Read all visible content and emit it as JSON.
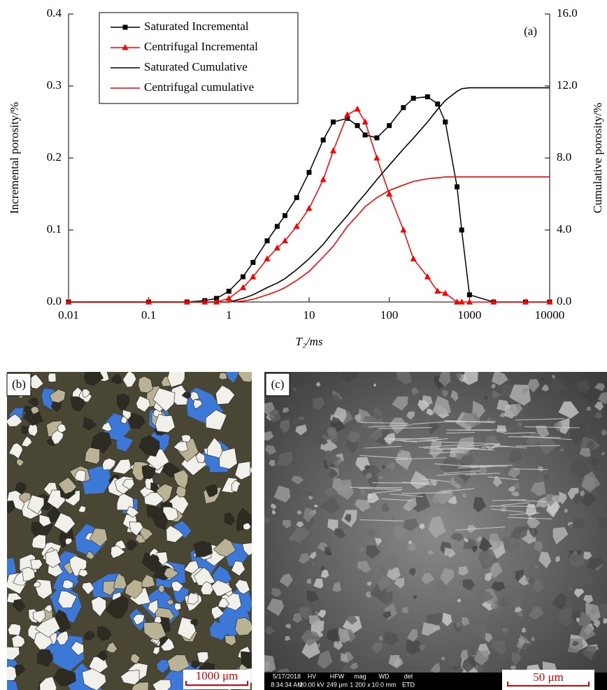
{
  "chart_data": {
    "type": "line",
    "annotation": "(a)",
    "x_label": "T₂/ms",
    "y_label": "Incremental porosity/%",
    "y2_label": "Cumulative porosity/%",
    "xscale": "log",
    "xlim": [
      0.01,
      10000
    ],
    "xticks": [
      0.01,
      0.1,
      1,
      10,
      100,
      1000,
      10000
    ],
    "ylim": [
      0,
      0.4
    ],
    "yticks": [
      {
        "value": 0,
        "label": "0.0"
      },
      {
        "value": 0.1,
        "label": "0.1"
      },
      {
        "value": 0.2,
        "label": "0.2"
      },
      {
        "value": 0.3,
        "label": "0.3"
      },
      {
        "value": 0.4,
        "label": "0.4"
      }
    ],
    "y2lim": [
      0,
      16
    ],
    "y2ticks": [
      {
        "value": 0,
        "label": "0.0"
      },
      {
        "value": 4,
        "label": "4.0"
      },
      {
        "value": 8,
        "label": "8.0"
      },
      {
        "value": 12,
        "label": "12.0"
      },
      {
        "value": 16,
        "label": "16.0"
      }
    ],
    "legend": "upper left",
    "x": [
      0.01,
      0.1,
      0.3,
      0.5,
      0.7,
      1,
      1.5,
      2,
      3,
      4,
      5,
      7,
      10,
      15,
      20,
      30,
      40,
      50,
      70,
      100,
      150,
      200,
      300,
      400,
      500,
      700,
      800,
      1000,
      2000,
      5000,
      10000
    ],
    "series": [
      {
        "name": "Saturated Incremental",
        "color": "#000000",
        "marker": "square",
        "values": [
          0,
          0,
          0,
          0.002,
          0.005,
          0.015,
          0.035,
          0.055,
          0.085,
          0.105,
          0.12,
          0.145,
          0.18,
          0.225,
          0.25,
          0.255,
          0.245,
          0.232,
          0.228,
          0.245,
          0.27,
          0.283,
          0.285,
          0.275,
          0.25,
          0.16,
          0.1,
          0.01,
          0,
          0,
          0
        ]
      },
      {
        "name": "Centrifugal Incremental",
        "color": "#ff0000",
        "marker": "triangle",
        "values": [
          0,
          0,
          0,
          0,
          0,
          0.005,
          0.02,
          0.035,
          0.06,
          0.075,
          0.085,
          0.105,
          0.13,
          0.17,
          0.21,
          0.26,
          0.268,
          0.25,
          0.2,
          0.15,
          0.1,
          0.06,
          0.035,
          0.015,
          0.012,
          0,
          0,
          0,
          0,
          0,
          0
        ]
      },
      {
        "name": "Saturated Cumulative",
        "color": "#000000",
        "axis": "y2",
        "values": [
          0,
          0,
          0,
          0,
          0,
          0,
          0.2,
          0.4,
          0.8,
          1.05,
          1.3,
          1.8,
          2.4,
          3.2,
          3.9,
          4.8,
          5.5,
          6.0,
          6.8,
          7.6,
          8.5,
          9.1,
          10.0,
          10.7,
          11.2,
          11.7,
          11.85,
          11.9,
          11.9,
          11.9,
          11.9
        ]
      },
      {
        "name": "Centrifugal cumulative",
        "color": "#ff0000",
        "axis": "y2",
        "values": [
          0,
          0,
          0,
          0,
          0,
          0,
          0.05,
          0.15,
          0.4,
          0.6,
          0.8,
          1.2,
          1.7,
          2.5,
          3.1,
          4.2,
          4.8,
          5.3,
          5.8,
          6.2,
          6.5,
          6.7,
          6.85,
          6.9,
          6.95,
          6.95,
          6.95,
          6.95,
          6.95,
          6.95,
          6.95
        ]
      }
    ]
  },
  "panels": {
    "b": {
      "label": "(b)",
      "scale_bar": "1000 μm"
    },
    "c": {
      "label": "(c)",
      "scale_bar": "50 μm",
      "info_bar": [
        [
          "5/17/2018",
          "8:34:34 AM"
        ],
        [
          "HV",
          "20.00 kV"
        ],
        [
          "HFW",
          "249 μm"
        ],
        [
          "mag",
          "1 200 x"
        ],
        [
          "WD",
          "10.0 mm"
        ],
        [
          "det",
          "ETD"
        ]
      ]
    }
  }
}
